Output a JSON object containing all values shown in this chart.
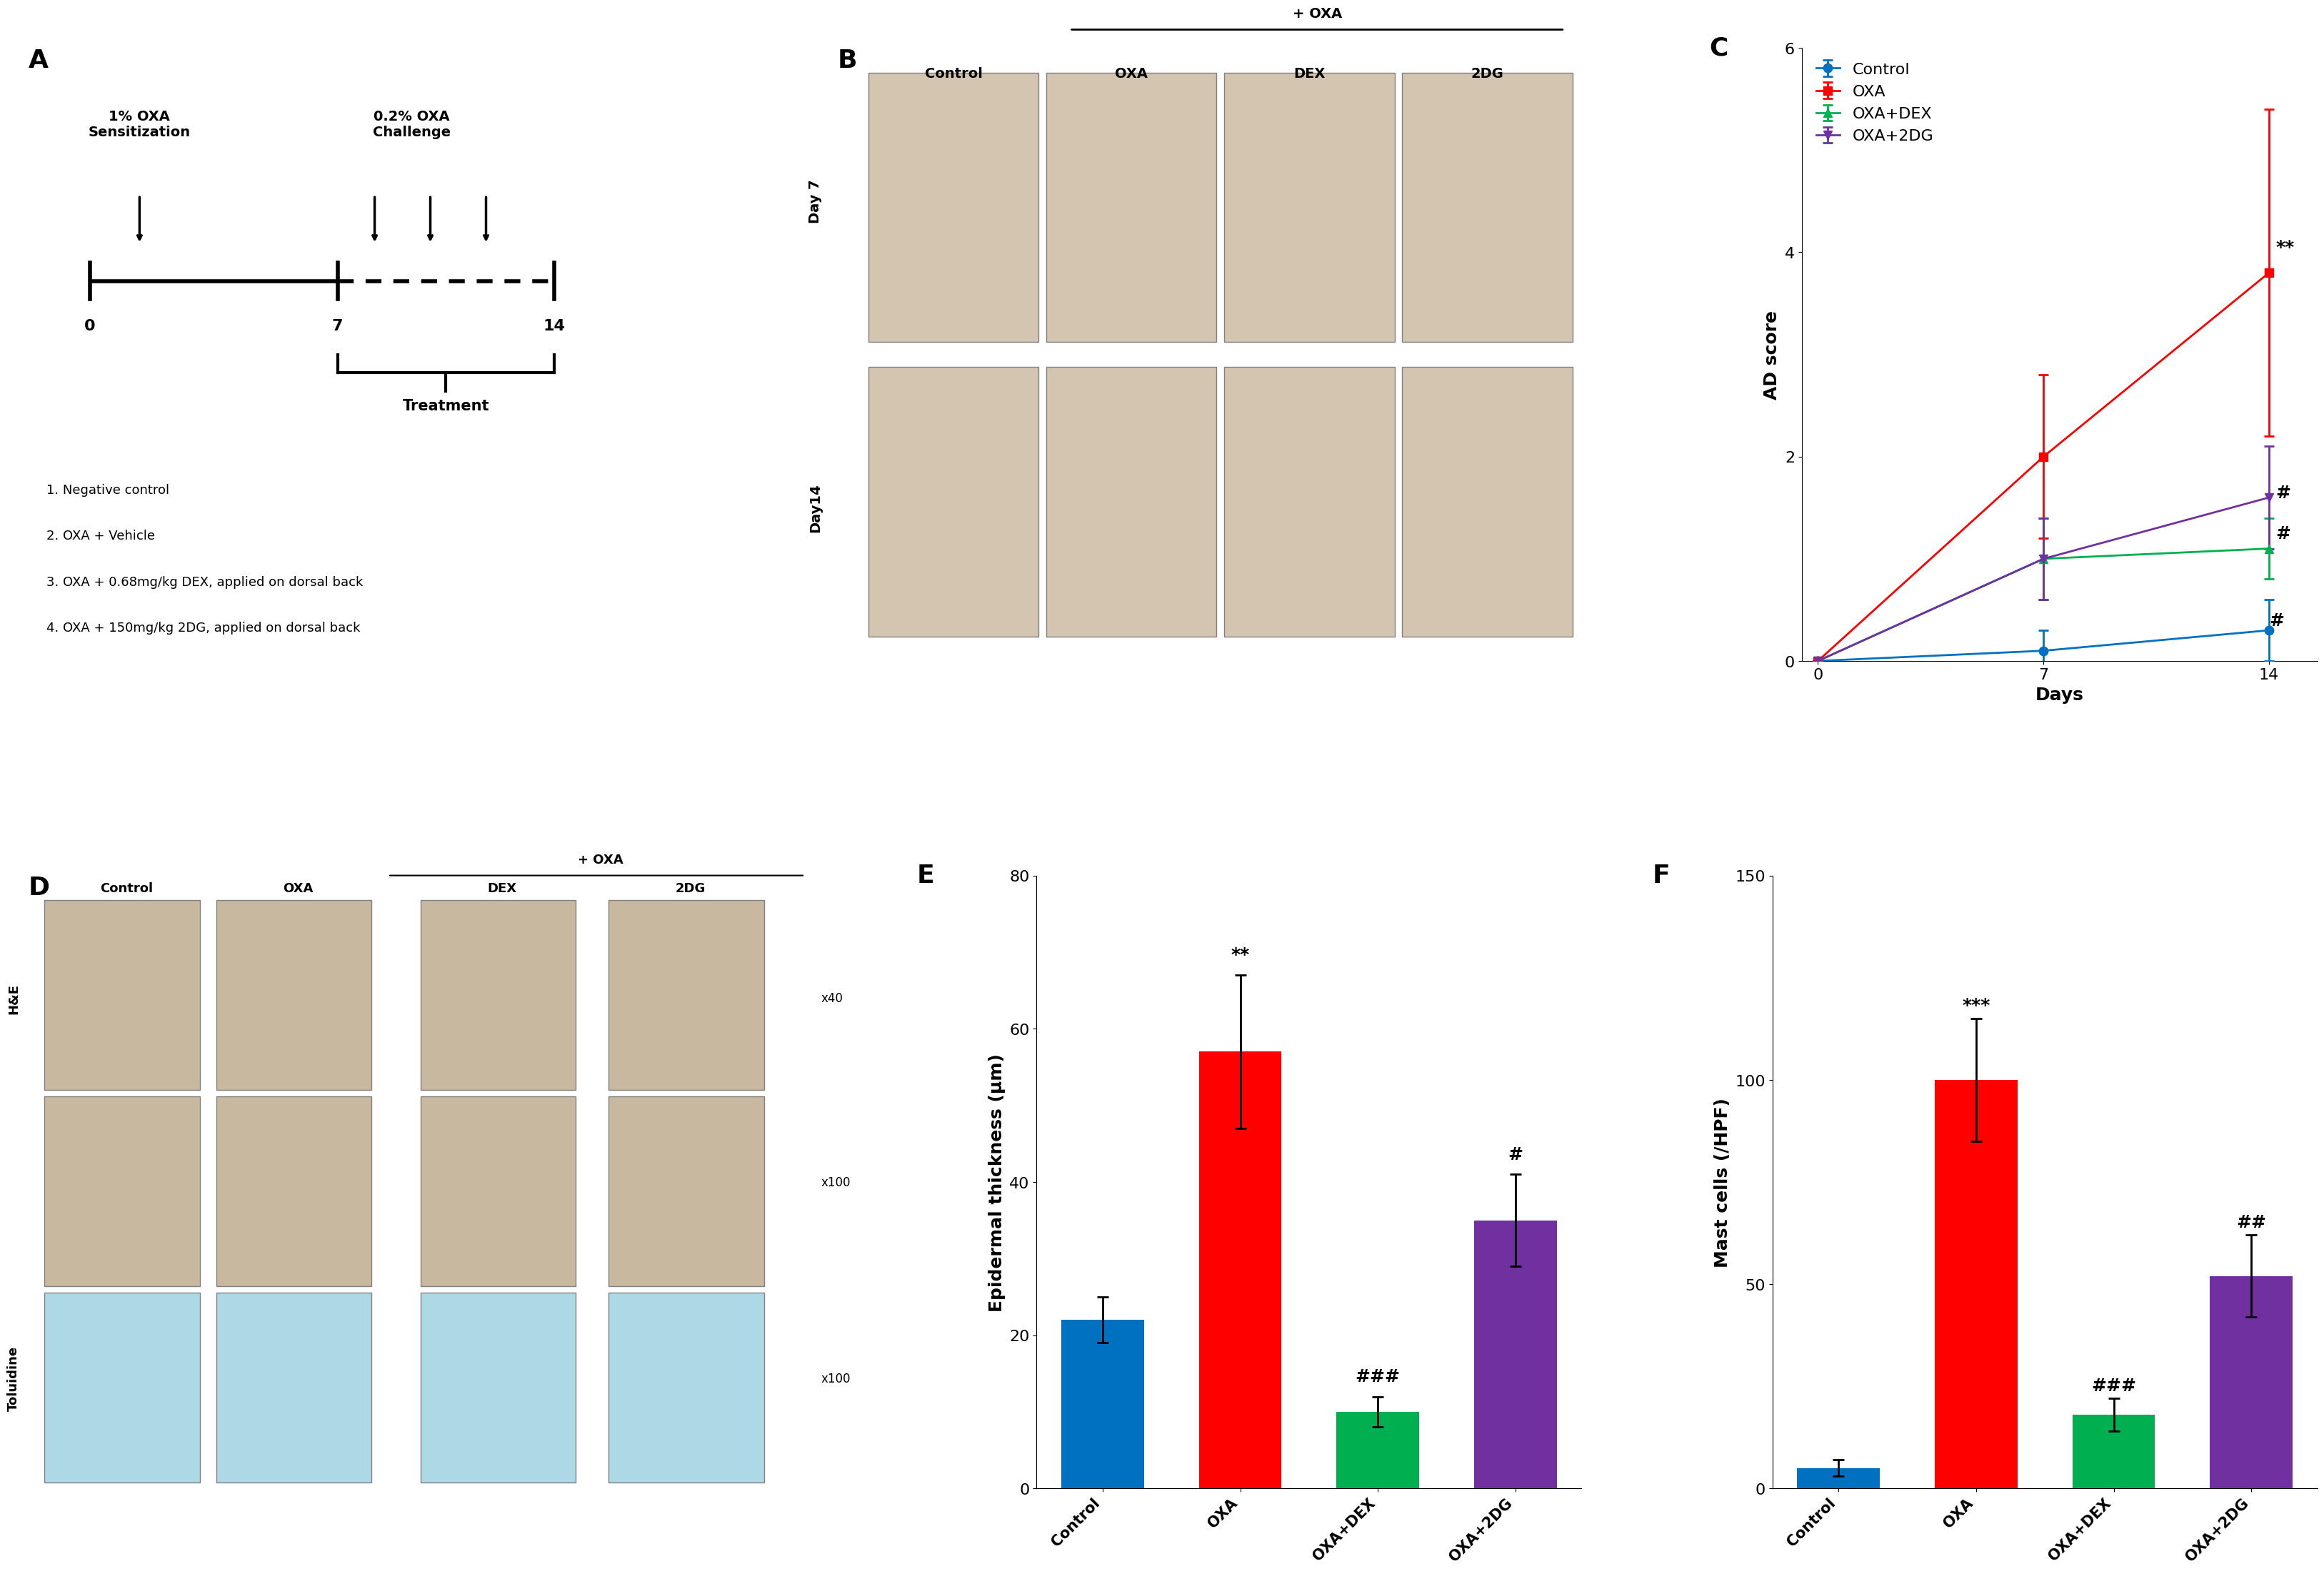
{
  "panel_C": {
    "title": "C",
    "xlabel": "Days",
    "ylabel": "AD score",
    "xlim": [
      -0.5,
      15.5
    ],
    "ylim": [
      0,
      6
    ],
    "xticks": [
      0,
      7,
      14
    ],
    "yticks": [
      0,
      2,
      4,
      6
    ],
    "groups": [
      "Control",
      "OXA",
      "OXA+DEX",
      "OXA+2DG"
    ],
    "colors": [
      "#0070C0",
      "#FF0000",
      "#00B050",
      "#7030A0"
    ],
    "markers": [
      "o",
      "s",
      "^",
      "v"
    ],
    "x": [
      0,
      7,
      14
    ],
    "means": {
      "Control": [
        0,
        0.1,
        0.3
      ],
      "OXA": [
        0,
        2.0,
        3.8
      ],
      "OXA+DEX": [
        0,
        1.0,
        1.1
      ],
      "OXA+2DG": [
        0,
        1.0,
        1.6
      ]
    },
    "errors": {
      "Control": [
        0,
        0.2,
        0.3
      ],
      "OXA": [
        0,
        0.8,
        1.6
      ],
      "OXA+DEX": [
        0,
        0.4,
        0.3
      ],
      "OXA+2DG": [
        0,
        0.4,
        0.5
      ]
    },
    "sig_labels": {
      "OXA_day14": "**",
      "OXA_DEX_day14": "#",
      "OXA_2DG_day14": "#"
    }
  },
  "panel_E": {
    "title": "E",
    "ylabel": "Epidermal thickness (μm)",
    "ylim": [
      0,
      80
    ],
    "yticks": [
      0,
      20,
      40,
      60,
      80
    ],
    "categories": [
      "Control",
      "OXA",
      "OXA+DEX",
      "OXA+2DG"
    ],
    "colors": [
      "#0070C0",
      "#FF0000",
      "#00B050",
      "#7030A0"
    ],
    "means": [
      22,
      57,
      10,
      35
    ],
    "errors": [
      3,
      10,
      2,
      6
    ],
    "sig_above_oxa": "**",
    "sig_above_dex": "###",
    "sig_above_2dg": "#"
  },
  "panel_F": {
    "title": "F",
    "ylabel": "Mast cells (/HPF)",
    "ylim": [
      0,
      150
    ],
    "yticks": [
      0,
      50,
      100,
      150
    ],
    "categories": [
      "Control",
      "OXA",
      "OXA+DEX",
      "OXA+2DG"
    ],
    "colors": [
      "#0070C0",
      "#FF0000",
      "#00B050",
      "#7030A0"
    ],
    "means": [
      5,
      100,
      18,
      52
    ],
    "errors": [
      2,
      15,
      4,
      10
    ],
    "sig_above_oxa": "***",
    "sig_above_dex": "###",
    "sig_above_2dg": "##"
  },
  "panel_A": {
    "title": "A",
    "text_lines": [
      "1. Negative control",
      "2. OXA + Vehicle",
      "3. OXA + 0.68mg/kg DEX, applied on dorsal back",
      "4. OXA + 150mg/kg 2DG, applied on dorsal back"
    ]
  },
  "background_color": "#FFFFFF",
  "fontsize_label": 18,
  "fontsize_tick": 16,
  "fontsize_title": 22,
  "fontsize_legend": 16,
  "fontsize_sig": 18
}
